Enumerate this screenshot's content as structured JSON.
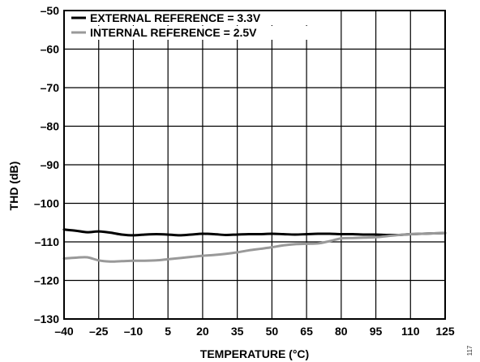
{
  "chart_data": {
    "type": "line",
    "xlabel": "TEMPERATURE (°C)",
    "ylabel": "THD (dB)",
    "xlim": [
      -40,
      125
    ],
    "ylim": [
      -130,
      -50
    ],
    "x_ticks": [
      -40,
      -25,
      -10,
      5,
      20,
      35,
      50,
      65,
      80,
      95,
      110,
      125
    ],
    "x_tick_labels": [
      "–40",
      "–25",
      "–10",
      "5",
      "20",
      "35",
      "50",
      "65",
      "80",
      "95",
      "110",
      "125"
    ],
    "y_ticks": [
      -50,
      -60,
      -70,
      -80,
      -90,
      -100,
      -110,
      -120,
      -130
    ],
    "y_tick_labels": [
      "–50",
      "–60",
      "–70",
      "–80",
      "–90",
      "–100",
      "–110",
      "–120",
      "–130"
    ],
    "grid": true,
    "legend_position": "top-left",
    "series": [
      {
        "name": "EXTERNAL REFERENCE = 3.3V",
        "color": "#000000",
        "x": [
          -40,
          -35,
          -30,
          -25,
          -20,
          -15,
          -10,
          -5,
          0,
          5,
          10,
          15,
          20,
          25,
          30,
          35,
          40,
          45,
          50,
          55,
          60,
          65,
          70,
          75,
          80,
          85,
          90,
          95,
          100,
          105,
          110,
          115,
          120,
          125
        ],
        "y": [
          -106.8,
          -107.1,
          -107.5,
          -107.3,
          -107.6,
          -108.1,
          -108.3,
          -108.1,
          -108.0,
          -108.1,
          -108.3,
          -108.1,
          -107.9,
          -108.0,
          -108.2,
          -108.1,
          -108.0,
          -108.0,
          -107.9,
          -108.0,
          -108.1,
          -108.0,
          -107.9,
          -107.9,
          -108.0,
          -108.0,
          -108.1,
          -108.1,
          -108.2,
          -108.2,
          -108.0,
          -107.9,
          -107.8,
          -107.7
        ]
      },
      {
        "name": "INTERNAL REFERENCE = 2.5V",
        "color": "#999999",
        "x": [
          -40,
          -35,
          -30,
          -25,
          -20,
          -15,
          -10,
          -5,
          0,
          5,
          10,
          15,
          20,
          25,
          30,
          35,
          40,
          45,
          50,
          55,
          60,
          65,
          70,
          75,
          80,
          85,
          90,
          95,
          100,
          105,
          110,
          115,
          120,
          125
        ],
        "y": [
          -114.3,
          -114.1,
          -114.0,
          -114.8,
          -115.1,
          -115.0,
          -114.9,
          -114.9,
          -114.8,
          -114.5,
          -114.2,
          -113.9,
          -113.6,
          -113.4,
          -113.1,
          -112.7,
          -112.2,
          -111.8,
          -111.4,
          -110.9,
          -110.6,
          -110.5,
          -110.4,
          -109.8,
          -109.1,
          -109.0,
          -108.9,
          -108.8,
          -108.5,
          -108.2,
          -108.0,
          -107.9,
          -107.8,
          -107.7
        ]
      }
    ]
  },
  "figure_id": "117"
}
